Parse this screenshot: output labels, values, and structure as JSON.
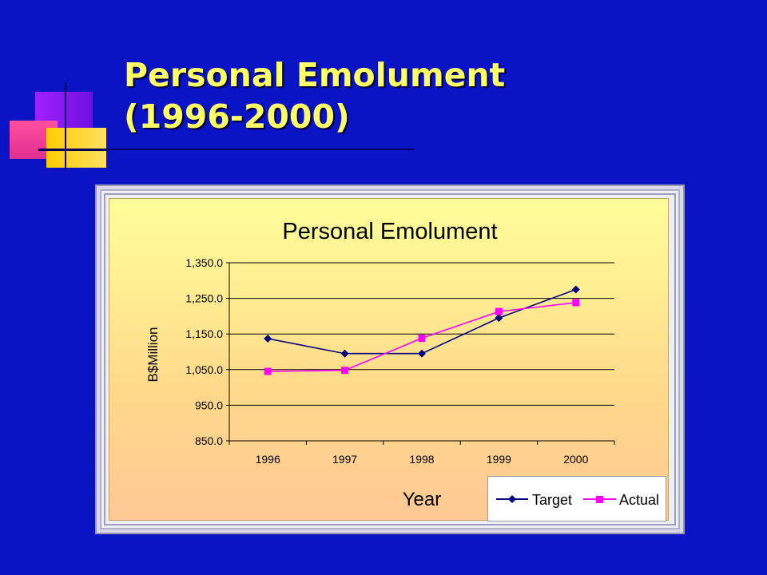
{
  "slide": {
    "title_line1": "Personal Emolument",
    "title_line2": "(1996-2000)",
    "background_color": "#0b14c4",
    "title_color": "#ffff66"
  },
  "chart_data": {
    "type": "line",
    "title": "Personal Emolument",
    "xlabel": "Year",
    "ylabel": "B$Million",
    "categories": [
      "1996",
      "1997",
      "1998",
      "1999",
      "2000"
    ],
    "y_ticks": [
      "850.0",
      "950.0",
      "1,050.0",
      "1,150.0",
      "1,250.0",
      "1,350.0"
    ],
    "ylim": [
      850,
      1350
    ],
    "grid": "horizontal",
    "legend_position": "bottom-right",
    "series": [
      {
        "name": "Target",
        "values": [
          1137,
          1095,
          1095,
          1195,
          1275
        ],
        "color": "#000080",
        "marker": "diamond"
      },
      {
        "name": "Actual",
        "values": [
          1045,
          1048,
          1138,
          1213,
          1238
        ],
        "color": "#ff00ff",
        "marker": "square"
      }
    ]
  }
}
